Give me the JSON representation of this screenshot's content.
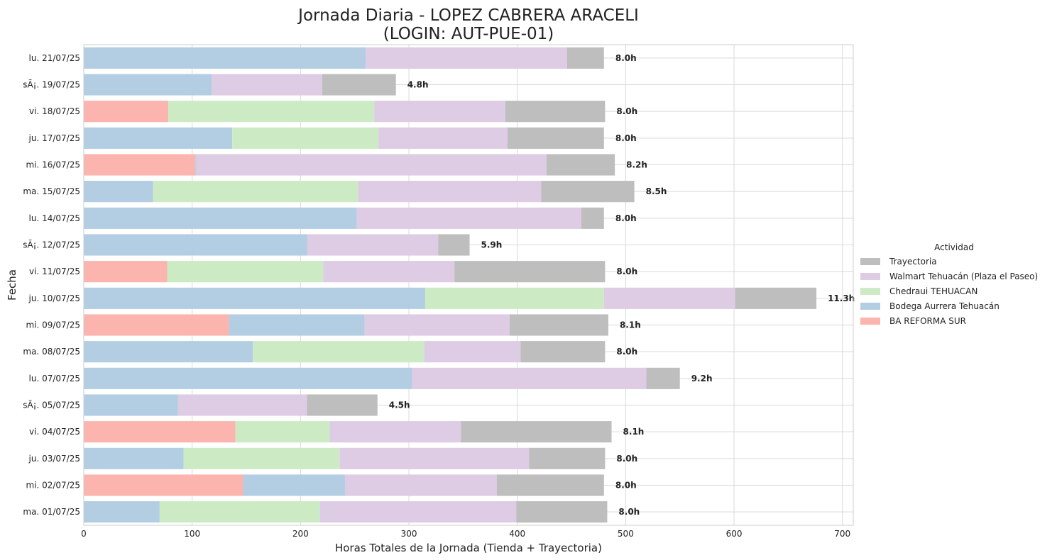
{
  "chart_data": {
    "type": "bar",
    "orientation": "horizontal",
    "stacked": true,
    "title": "Jornada Diaria - LOPEZ CABRERA ARACELI",
    "subtitle": "(LOGIN: AUT-PUE-01)",
    "xlabel": "Horas Totales de la Jornada (Tienda + Trayectoria)",
    "ylabel": "Fecha",
    "xlim": [
      0,
      710
    ],
    "xticks": [
      0,
      100,
      200,
      300,
      400,
      500,
      600,
      700
    ],
    "grid": true,
    "legend_title": "Actividad",
    "legend_position": "center-right",
    "legend_order": [
      "Trayectoria",
      "Walmart Tehuacán (Plaza el Paseo)",
      "Chedraui TEHUACAN",
      "Bodega Aurrera Tehuacán",
      "BA REFORMA SUR"
    ],
    "categories": [
      "lu. 21/07/25",
      "sÃ¡. 19/07/25",
      "vi. 18/07/25",
      "ju. 17/07/25",
      "mi. 16/07/25",
      "ma. 15/07/25",
      "lu. 14/07/25",
      "sÃ¡. 12/07/25",
      "vi. 11/07/25",
      "ju. 10/07/25",
      "mi. 09/07/25",
      "ma. 08/07/25",
      "lu. 07/07/25",
      "sÃ¡. 05/07/25",
      "vi. 04/07/25",
      "ju. 03/07/25",
      "mi. 02/07/25",
      "ma. 01/07/25"
    ],
    "totals": [
      "8.0h",
      "4.8h",
      "8.0h",
      "8.0h",
      "8.2h",
      "8.5h",
      "8.0h",
      "5.9h",
      "8.0h",
      "11.3h",
      "8.1h",
      "8.0h",
      "9.2h",
      "4.5h",
      "8.1h",
      "8.0h",
      "8.0h",
      "8.0h"
    ],
    "series": [
      {
        "name": "BA REFORMA SUR",
        "color": "#fbb4ae",
        "values": [
          0,
          0,
          78,
          0,
          103,
          0,
          0,
          0,
          77,
          0,
          134,
          0,
          0,
          0,
          140,
          0,
          147,
          0
        ]
      },
      {
        "name": "Bodega Aurrera Tehuacán",
        "color": "#b3cde3",
        "values": [
          260,
          118,
          0,
          137,
          1,
          64,
          252,
          206,
          0,
          315,
          125,
          156,
          303,
          87,
          0,
          92,
          94,
          70
        ]
      },
      {
        "name": "Chedraui TEHUACAN",
        "color": "#ccebc5",
        "values": [
          0,
          0,
          190,
          135,
          0,
          189,
          0,
          0,
          144,
          165,
          0,
          158,
          0,
          0,
          87,
          144,
          0,
          148
        ]
      },
      {
        "name": "Walmart Tehuacán (Plaza el Paseo)",
        "color": "#decbe4",
        "values": [
          186,
          102,
          121,
          119,
          323,
          169,
          207,
          121,
          121,
          121,
          134,
          89,
          216,
          119,
          121,
          175,
          140,
          181
        ]
      },
      {
        "name": "Trayectoria",
        "color": "#bebebe",
        "values": [
          34,
          68,
          92,
          89,
          63,
          86,
          21,
          29,
          139,
          75,
          91,
          78,
          31,
          65,
          139,
          70,
          99,
          84
        ]
      }
    ]
  }
}
